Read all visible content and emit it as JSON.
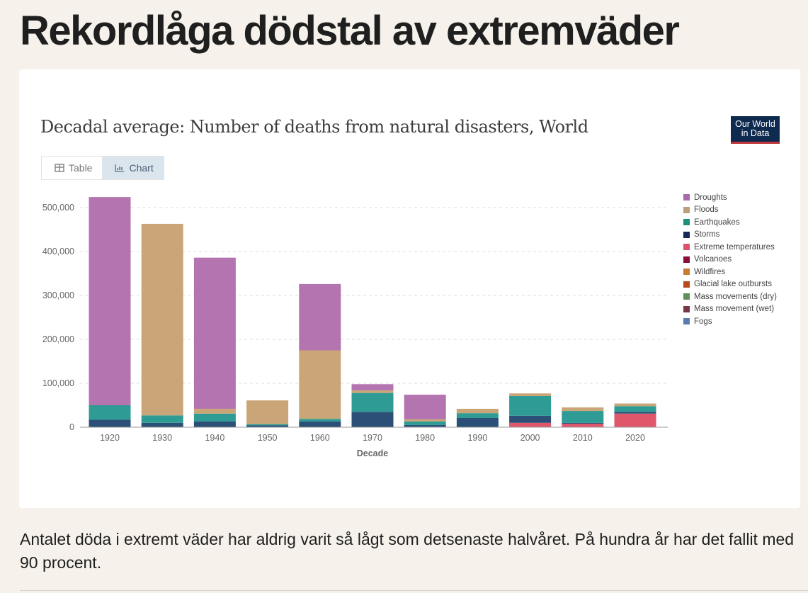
{
  "headline": "Rekordlåga dödstal av extremväder",
  "chart_card": {
    "logo_text": [
      "Our World",
      "in Data"
    ],
    "tabs": [
      {
        "label": "Table",
        "icon": "table-icon",
        "active": false
      },
      {
        "label": "Chart",
        "icon": "chart-icon",
        "active": true
      }
    ]
  },
  "chart_data": {
    "type": "bar",
    "stacked": true,
    "title": "Decadal average: Number of deaths from natural disasters, World",
    "xlabel": "Decade",
    "ylabel": "",
    "ylim": [
      0,
      525000
    ],
    "yticks": [
      0,
      100000,
      200000,
      300000,
      400000,
      500000
    ],
    "ytick_labels": [
      "0",
      "100,000",
      "200,000",
      "300,000",
      "400,000",
      "500,000"
    ],
    "grid": true,
    "legend_position": "right",
    "categories": [
      "1920",
      "1930",
      "1940",
      "1950",
      "1960",
      "1970",
      "1980",
      "1990",
      "2000",
      "2010",
      "2020"
    ],
    "series": [
      {
        "name": "Extreme temperatures",
        "color": "#e0566b",
        "values": [
          0,
          0,
          0,
          0,
          0,
          0,
          1000,
          0,
          10000,
          8000,
          31000
        ]
      },
      {
        "name": "Storms",
        "color": "#2c4f78",
        "values": [
          17000,
          10000,
          13000,
          4000,
          13000,
          35000,
          4000,
          21000,
          16000,
          2000,
          4000
        ]
      },
      {
        "name": "Earthquakes",
        "color": "#2e9c94",
        "values": [
          33000,
          17000,
          18000,
          3000,
          6000,
          43000,
          8000,
          11000,
          45000,
          27000,
          13000
        ]
      },
      {
        "name": "Floods",
        "color": "#c9a577",
        "values": [
          0,
          436000,
          11000,
          54000,
          156000,
          6000,
          5000,
          10000,
          6000,
          8000,
          6000
        ]
      },
      {
        "name": "Droughts",
        "color": "#b374b0",
        "values": [
          474000,
          0,
          344000,
          0,
          151000,
          14000,
          56000,
          0,
          0,
          0,
          0
        ]
      }
    ],
    "legend": [
      {
        "name": "Droughts",
        "color": "#a86aa8"
      },
      {
        "name": "Floods",
        "color": "#bba07a"
      },
      {
        "name": "Earthquakes",
        "color": "#1f8f7a"
      },
      {
        "name": "Storms",
        "color": "#14285a"
      },
      {
        "name": "Extreme temperatures",
        "color": "#d9536a"
      },
      {
        "name": "Volcanoes",
        "color": "#8a0e3a"
      },
      {
        "name": "Wildfires",
        "color": "#c97a33"
      },
      {
        "name": "Glacial lake outbursts",
        "color": "#b84a1e"
      },
      {
        "name": "Mass movements (dry)",
        "color": "#5f8f5a"
      },
      {
        "name": "Mass movement (wet)",
        "color": "#7a3645"
      },
      {
        "name": "Fogs",
        "color": "#5a7bb0"
      }
    ]
  },
  "body_text": "Antalet döda i extremt väder har aldrig varit så lågt som detsenaste halvåret. På hundra år har det fallit med 90 procent."
}
